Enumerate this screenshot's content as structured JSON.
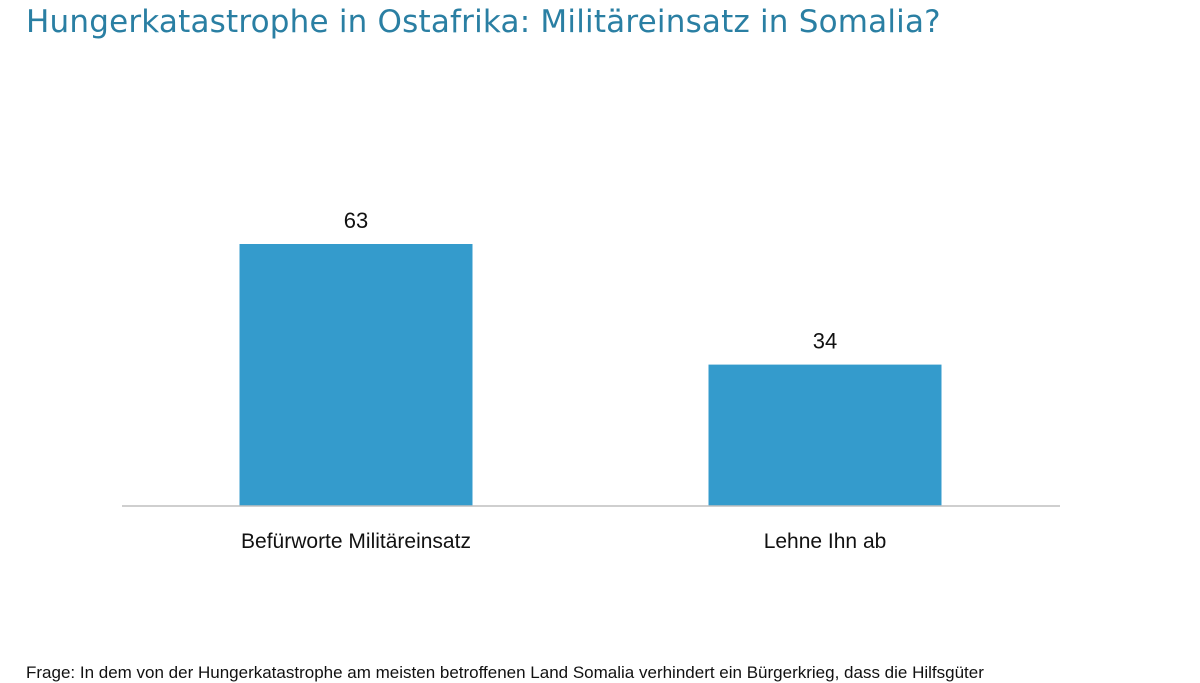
{
  "title": "Hungerkatastrophe in Ostafrika: Militäreinsatz in Somalia?",
  "footnote": "Frage: In dem von der Hungerkatastrophe am meisten betroffenen Land Somalia verhindert ein Bürgerkrieg, dass die Hilfsgüter",
  "colors": {
    "bar": "#349bcc",
    "title": "#2a7fa3",
    "baseline": "#bfbfbf"
  },
  "chart_data": {
    "type": "bar",
    "title": "Hungerkatastrophe in Ostafrika: Militäreinsatz in Somalia?",
    "categories": [
      "Befürworte Militäreinsatz",
      "Lehne Ihn ab"
    ],
    "values": [
      63,
      34
    ],
    "data_labels": [
      "63",
      "34"
    ],
    "xlabel": "",
    "ylabel": "",
    "ylim": [
      0,
      63
    ],
    "grid": false,
    "legend": "none"
  }
}
